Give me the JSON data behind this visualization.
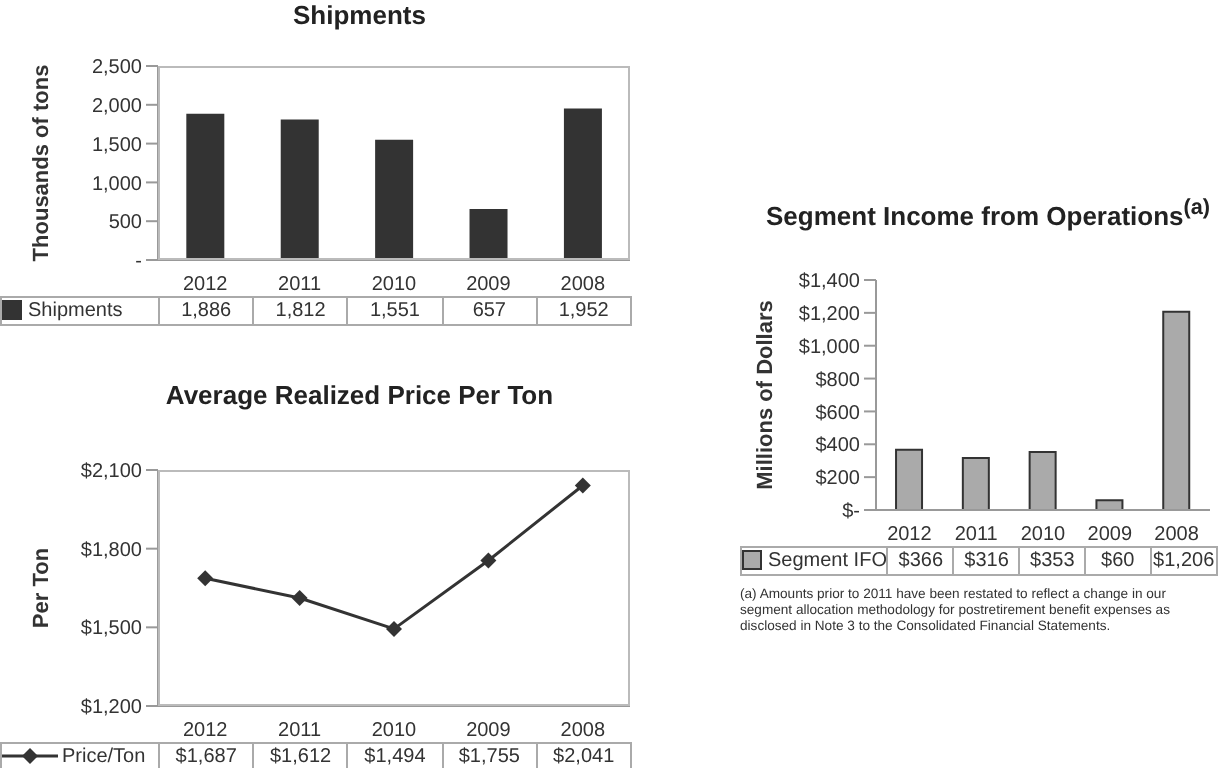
{
  "chart_data": [
    {
      "type": "bar",
      "title": "Shipments",
      "ylabel": "Thousands of tons",
      "categories": [
        "2012",
        "2011",
        "2010",
        "2009",
        "2008"
      ],
      "series": [
        {
          "name": "Shipments",
          "color": "#333333",
          "values": [
            1886,
            1812,
            1551,
            657,
            1952
          ],
          "value_labels": [
            "1,886",
            "1,812",
            "1,551",
            "657",
            "1,952"
          ]
        }
      ],
      "ylim": [
        0,
        2500
      ],
      "yticks": [
        {
          "value": 0,
          "label": "-"
        },
        {
          "value": 500,
          "label": "500"
        },
        {
          "value": 1000,
          "label": "1,000"
        },
        {
          "value": 1500,
          "label": "1,500"
        },
        {
          "value": 2000,
          "label": "2,000"
        },
        {
          "value": 2500,
          "label": "2,500"
        }
      ],
      "legend": "bottom left"
    },
    {
      "type": "line",
      "title": "Average Realized Price Per Ton",
      "ylabel": "Per Ton",
      "categories": [
        "2012",
        "2011",
        "2010",
        "2009",
        "2008"
      ],
      "series": [
        {
          "name": "Price/Ton",
          "color": "#333333",
          "values": [
            1687,
            1612,
            1494,
            1755,
            2041
          ],
          "value_labels": [
            "$1,687",
            "$1,612",
            "$1,494",
            "$1,755",
            "$2,041"
          ]
        }
      ],
      "ylim": [
        1200,
        2100
      ],
      "yticks": [
        {
          "value": 1200,
          "label": "$1,200"
        },
        {
          "value": 1500,
          "label": "$1,500"
        },
        {
          "value": 1800,
          "label": "$1,800"
        },
        {
          "value": 2100,
          "label": "$2,100"
        }
      ],
      "marker": "diamond",
      "legend": "bottom left"
    },
    {
      "type": "bar",
      "title": "Segment Income from Operations$^{(a)}$",
      "ylabel": "Millions of Dollars",
      "categories": [
        "2012",
        "2011",
        "2010",
        "2009",
        "2008"
      ],
      "series": [
        {
          "name": "Segment IFO",
          "color": "#aaaaaa",
          "values": [
            366,
            316,
            353,
            60,
            1206
          ],
          "value_labels": [
            "$366",
            "$316",
            "$353",
            "$60",
            "$1,206"
          ]
        }
      ],
      "ylim": [
        0,
        1400
      ],
      "yticks": [
        {
          "value": 0,
          "label": "$-"
        },
        {
          "value": 200,
          "label": "$200"
        },
        {
          "value": 400,
          "label": "$400"
        },
        {
          "value": 600,
          "label": "$600"
        },
        {
          "value": 800,
          "label": "$800"
        },
        {
          "value": 1000,
          "label": "$1,000"
        },
        {
          "value": 1200,
          "label": "$1,200"
        },
        {
          "value": 1400,
          "label": "$1,400"
        }
      ],
      "legend": "bottom left",
      "annotations": [
        "(a) Amounts prior to 2011 have been restated to reflect a change in our segment allocation methodology for postretirement benefit expenses as disclosed in Note 3 to the Consolidated Financial Statements."
      ]
    }
  ]
}
